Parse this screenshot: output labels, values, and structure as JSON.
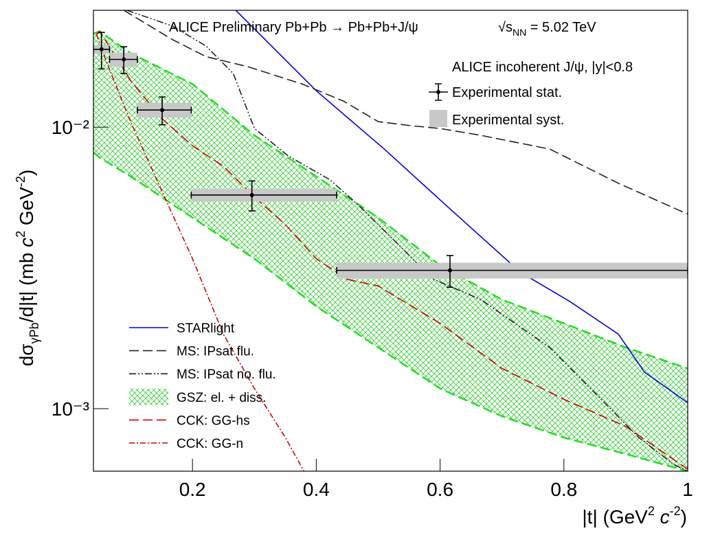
{
  "chart_data": {
    "type": "line",
    "title": "ALICE Preliminary Pb+Pb → Pb+Pb+J/ψ",
    "energy_parts": [
      "√s",
      "NN",
      " = 5.02 TeV"
    ],
    "xlabel_parts": [
      "|t| (GeV",
      "2",
      " c",
      "-2",
      ")"
    ],
    "ylabel_parts": [
      "dσ",
      "γPb",
      "/d|t| (mb ",
      "c",
      "2",
      " GeV",
      "-2",
      ")"
    ],
    "xlim": [
      0.04,
      1
    ],
    "ylim": [
      0.0006,
      0.026
    ],
    "log_y": true,
    "xticks": [
      0.2,
      0.4,
      0.6,
      0.8,
      1
    ],
    "yticks": [
      {
        "value": 0.001,
        "label": "10⁻³"
      },
      {
        "value": 0.01,
        "label": "10⁻²"
      }
    ],
    "series": [
      {
        "name": "STARlight",
        "color": "#0000dd",
        "dash": "none",
        "x": [
          0.27,
          0.4,
          0.51,
          0.607,
          0.73,
          0.81,
          0.888,
          0.93,
          1.0
        ],
        "values": [
          0.026,
          0.01346,
          0.00835,
          0.00534,
          0.00305,
          0.0024,
          0.00184,
          0.00135,
          0.00105
        ]
      },
      {
        "name": "MS: IPsat flu.",
        "color": "#222222",
        "dash": "14,6",
        "x": [
          0.089,
          0.167,
          0.222,
          0.289,
          0.377,
          0.444,
          0.5,
          0.555,
          0.6,
          0.666,
          0.777,
          0.888,
          1.0
        ],
        "values": [
          0.026,
          0.0205,
          0.0178,
          0.0164,
          0.01423,
          0.01237,
          0.01046,
          0.01011,
          0.00989,
          0.00935,
          0.00836,
          0.00632,
          0.00491
        ]
      },
      {
        "name": "MS: IPsat no. flu.",
        "color": "#222222",
        "dash": "10,3,2,3,2,3",
        "x": [
          0.094,
          0.167,
          0.222,
          0.266,
          0.3,
          0.355,
          0.422,
          0.466,
          0.533,
          0.588,
          0.666,
          0.777,
          0.855,
          0.921,
          0.977,
          1.0
        ],
        "values": [
          0.026,
          0.0229,
          0.0194,
          0.01549,
          0.00989,
          0.0079,
          0.0065,
          0.00534,
          0.00382,
          0.00289,
          0.00244,
          0.00165,
          0.00111,
          0.00079,
          0.000635,
          0.0006
        ]
      },
      {
        "name": "CCK: GG-hs",
        "color": "#cc0000",
        "dash": "14,6",
        "x": [
          0.045,
          0.05,
          0.08,
          0.1,
          0.15,
          0.2,
          0.25,
          0.3,
          0.35,
          0.4,
          0.45,
          0.5,
          0.6,
          0.7,
          0.8,
          0.9,
          1.0
        ],
        "values": [
          0.0214,
          0.0219,
          0.0173,
          0.01463,
          0.01076,
          0.00859,
          0.00726,
          0.00565,
          0.00451,
          0.00341,
          0.00288,
          0.00273,
          0.00201,
          0.00139,
          0.00108,
          0.000865,
          0.00061
        ]
      },
      {
        "name": "CCK: GG-n",
        "color": "#cc0000",
        "dash": "8,3,2,3",
        "x": [
          0.045,
          0.06,
          0.1,
          0.15,
          0.2,
          0.25,
          0.3,
          0.35,
          0.38
        ],
        "values": [
          0.0214,
          0.0173,
          0.01046,
          0.00597,
          0.00341,
          0.00184,
          0.00118,
          0.00079,
          0.0006
        ]
      }
    ],
    "band": {
      "name": "GSZ: el. + diss.",
      "color": "#22dd22",
      "x": [
        0.04,
        0.05,
        0.1,
        0.2,
        0.3,
        0.4,
        0.5,
        0.6,
        0.7,
        0.8,
        0.9,
        1.0
      ],
      "upper": [
        0.0215,
        0.0219,
        0.0183,
        0.01423,
        0.00935,
        0.00668,
        0.00477,
        0.00323,
        0.00244,
        0.00201,
        0.00165,
        0.00139
      ],
      "lower": [
        0.00813,
        0.0078,
        0.00668,
        0.00477,
        0.00341,
        0.00231,
        0.00165,
        0.00118,
        0.00094,
        0.00079,
        0.00069,
        0.0006
      ]
    },
    "data": {
      "name": "ALICE incoherent J/ψ, |y|<0.8",
      "stat_name": "Experimental stat.",
      "syst_name": "Experimental syst.",
      "color": "#000000",
      "syst_color": "#c8c8c8",
      "x": [
        0.053,
        0.089,
        0.151,
        0.296,
        0.616
      ],
      "x_low": [
        0.04,
        0.066,
        0.111,
        0.198,
        0.433
      ],
      "x_high": [
        0.066,
        0.111,
        0.198,
        0.433,
        1.0
      ],
      "values": [
        0.0189,
        0.0174,
        0.0115,
        0.00574,
        0.0031
      ],
      "stat_err": [
        0.0028,
        0.0019,
        0.0013,
        0.0007,
        0.0004
      ],
      "syst_err": [
        0.0007,
        0.001,
        0.0007,
        0.0003,
        0.0002
      ]
    }
  }
}
